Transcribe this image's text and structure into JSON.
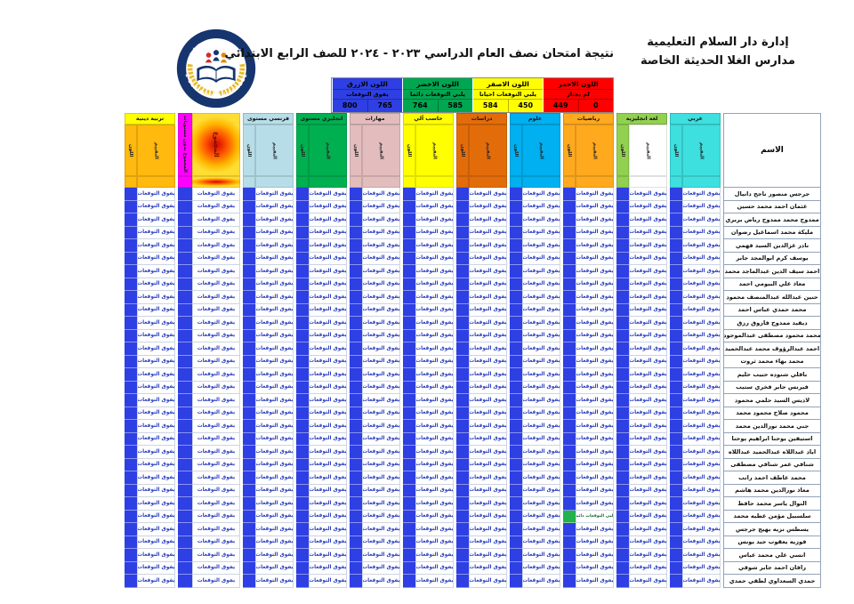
{
  "page": {
    "admin_line1": "إدارة دار السلام التعليمية",
    "admin_line2": "مدارس الغلا الحديثة الخاصة",
    "title": "نتيجة امتحان نصف العام الدراسي ٢٠٢٣ - ٢٠٢٤ للصف الرابع الابتدائي",
    "logo": {
      "text_top": "مدارس الاولى الحديثة الخاصة",
      "text_bottom": "AL OLA MODERN SCHOOLS"
    }
  },
  "legend": {
    "blocks": [
      {
        "title": "اللون الاحمر",
        "desc": "لم يجتاز",
        "high": "449",
        "low": "0",
        "color": "#FF0000"
      },
      {
        "title": "اللون الاصفر",
        "desc": "يلبي التوقعات احيانا",
        "high": "584",
        "low": "450",
        "color": "#FFFF00"
      },
      {
        "title": "اللون الاخضر",
        "desc": "يلبي التوقعات دائما",
        "high": "764",
        "low": "585",
        "color": "#00A650"
      },
      {
        "title": "اللون الازرق",
        "desc": "يفوق التوقعات",
        "high": "800",
        "low": "765",
        "color": "#2E3FE3"
      }
    ]
  },
  "table": {
    "name_header": "الاسم",
    "sub_labels": {
      "color": "اللون",
      "eval": "التقييم"
    },
    "default_grade": {
      "label": "يفوق التوقعات",
      "color": "#2E3FE3"
    },
    "subjects": [
      {
        "slug": "arabic",
        "name": "عربي",
        "kind": "normal",
        "header": "#3EDFDF",
        "cell": "#3EDFDF",
        "eval": "#3EDFDF"
      },
      {
        "slug": "english",
        "name": "لغة انجليزية",
        "kind": "normal",
        "header": "#92D050",
        "cell": "#92D050",
        "eval": "#FFFFFF"
      },
      {
        "slug": "math",
        "name": "رياضيات",
        "kind": "normal",
        "header": "#FFA91E",
        "cell": "#FFA91E",
        "eval": "#FFA91E"
      },
      {
        "slug": "science",
        "name": "علوم",
        "kind": "normal",
        "header": "#00B0F0",
        "cell": "#00B0F0",
        "eval": "#00B0F0"
      },
      {
        "slug": "social-studies",
        "name": "دراسات",
        "kind": "normal",
        "header": "#E36C0A",
        "cell": "#E36C0A",
        "eval": "#E36C0A"
      },
      {
        "slug": "computer",
        "name": "حاسب آلي",
        "kind": "normal",
        "header": "#FFFF00",
        "cell": "#FFFF00",
        "eval": "#FFFF00"
      },
      {
        "slug": "skills",
        "name": "مهارات",
        "kind": "normal",
        "header": "#E3BDBD",
        "cell": "#E3BDBD",
        "eval": "#E3BDBD"
      },
      {
        "slug": "english-level",
        "name": "انجليزي مستوى",
        "kind": "normal",
        "header": "#00B050",
        "cell": "#00B050",
        "eval": "#00B050"
      },
      {
        "slug": "french-level",
        "name": "فرنسي مستوى",
        "kind": "normal",
        "header": "#B7DEE8",
        "cell": "#B7DEE8",
        "eval": "#B7DEE8"
      },
      {
        "slug": "total",
        "name": "المجموع",
        "kind": "total",
        "cell": "#FF00FF",
        "eval_label": "المجموع",
        "color_label": "المجموع بدون مستويات"
      },
      {
        "slug": "religion",
        "name": "تربية دينية",
        "kind": "normal",
        "header": "#FFFF00",
        "cell": "#FFB90F",
        "eval": "#FFB90F"
      }
    ],
    "students": [
      "جرجس منصور ناجح دانيال",
      "عثمان احمد محمد حسين",
      "ممدوح محمد ممدوح رياض بربري",
      "مليكة محمد اسماعيل رضوان",
      "نادر عزالدين السيد فهمي",
      "يوسف كرم ابوالمجد جابر",
      "احمد سيف الدين عبدالماجد محمد",
      "معاذ علي البيومي احمد",
      "حنين عبدالله عبدالمنصف محمود",
      "محمد حمدي عباس احمد",
      "ديفيد ممدوح فاروق رزق",
      "محمد محمود مصطفى عبدالموجود",
      "احمد عبدالرؤوف محمد عبدالحميد",
      "محمد بهاء محمد ثروت",
      "بافلي شنوده حبيب حليم",
      "فيرنس جابر فخري ستيب",
      "لاديس السيد حلمي محمود",
      "محمود صلاح محمود محمد",
      "جني محمد نورالدين محمد",
      "استيفين يوحنا ابراهيم يوحنا",
      "اياد عبداللاه عبدالحميد عبداللاه",
      "شنافي عمر شنافي مصطفى",
      "محمد عاطف احمد راتب",
      "معاذ نورالدين محمد هاشم",
      "النوال ياسر محمد حافظ",
      "سلسبيل مؤمن عطيه محمد",
      "يسطس نزيه بهيج جرجس",
      "فوزيه يعقوب جيد يونس",
      "انسي علي محمد عباس",
      "رافان احمد جابر شوقي",
      "حمدي السعداوي لطفي حمدي"
    ],
    "exceptions": [
      {
        "row": 26,
        "subject": "رياضيات",
        "label": "يلبي التوقعات دائما",
        "color": "#22B14C"
      }
    ]
  }
}
